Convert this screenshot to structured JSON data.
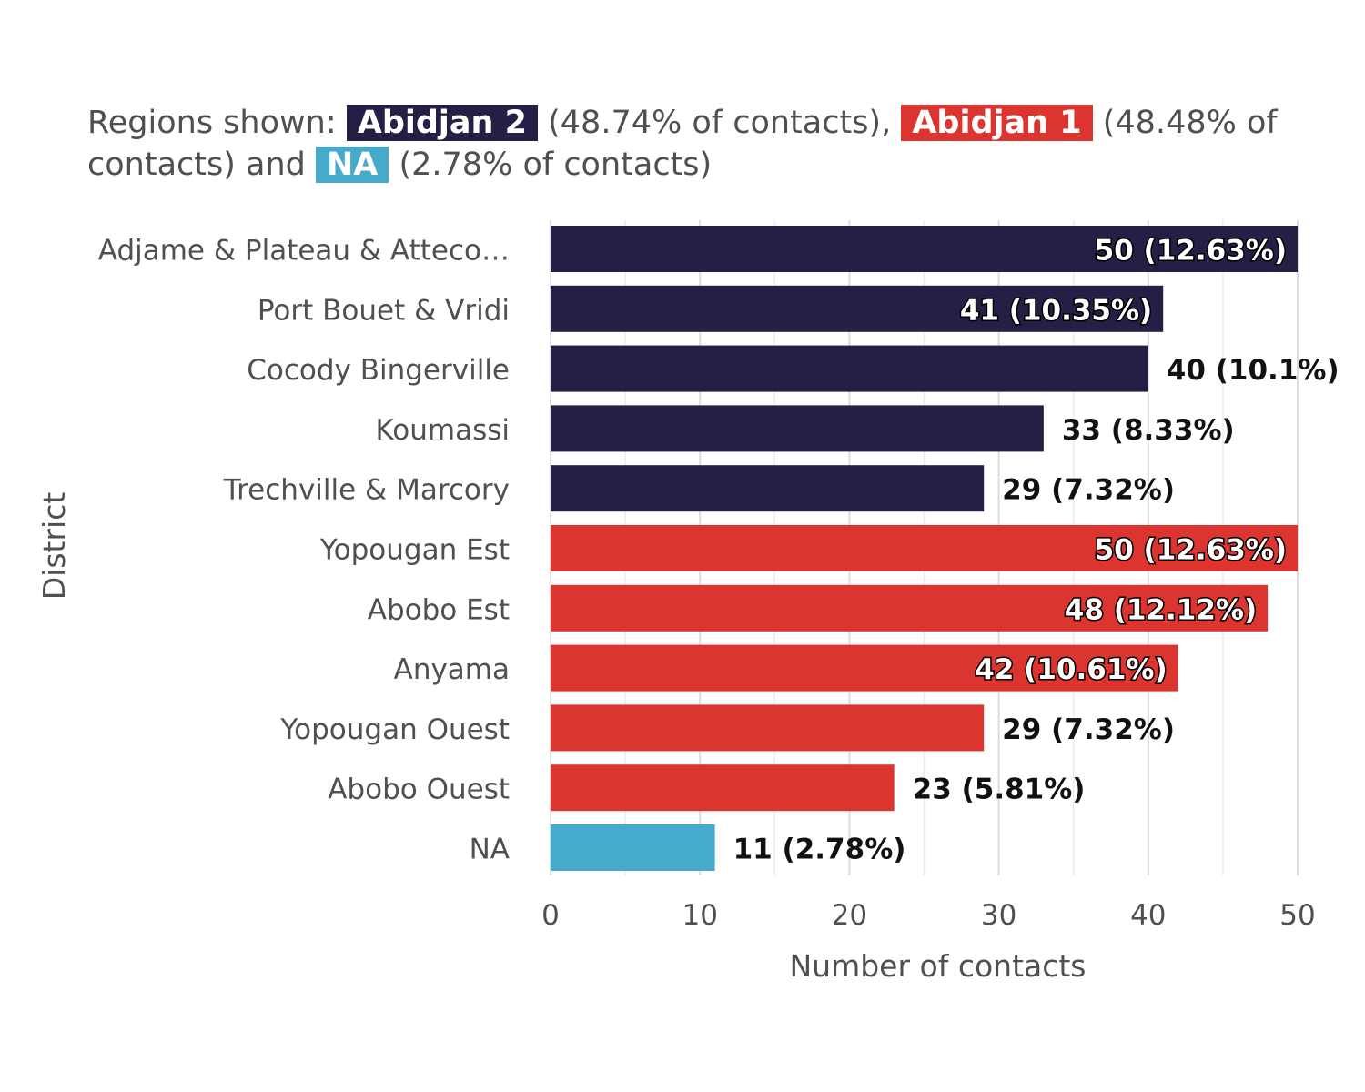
{
  "subtitle": {
    "prefix": "Regions shown:",
    "regions": [
      {
        "name": "Abidjan 2",
        "color": "#271E46",
        "share": "(48.74% of contacts)",
        "sep": ","
      },
      {
        "name": "Abidjan 1",
        "color": "#DC3530",
        "share": "(48.48% of contacts)",
        "sep": " and"
      },
      {
        "name": "NA",
        "color": "#46ABCB",
        "share": "(2.78% of contacts)",
        "sep": ""
      }
    ]
  },
  "chart_data": {
    "type": "bar",
    "orientation": "horizontal",
    "xlabel": "Number of contacts",
    "ylabel": "District",
    "xlim": [
      0,
      50
    ],
    "xticks": [
      0,
      10,
      20,
      30,
      40,
      50
    ],
    "grid": true,
    "categories": [
      "Adjame & Plateau & Atteco…",
      "Port Bouet & Vridi",
      "Cocody Bingerville",
      "Koumassi",
      "Trechville & Marcory",
      "Yopougan Est",
      "Abobo Est",
      "Anyama",
      "Yopougan Ouest",
      "Abobo Ouest",
      "NA"
    ],
    "values": [
      50,
      41,
      40,
      33,
      29,
      50,
      48,
      42,
      29,
      23,
      11
    ],
    "labels": [
      "50 (12.63%)",
      "41 (10.35%)",
      "40 (10.1%)",
      "33 (8.33%)",
      "29 (7.32%)",
      "50 (12.63%)",
      "48 (12.12%)",
      "42 (10.61%)",
      "29 (7.32%)",
      "23 (5.81%)",
      "11 (2.78%)"
    ],
    "regions": [
      "Abidjan 2",
      "Abidjan 2",
      "Abidjan 2",
      "Abidjan 2",
      "Abidjan 2",
      "Abidjan 1",
      "Abidjan 1",
      "Abidjan 1",
      "Abidjan 1",
      "Abidjan 1",
      "NA"
    ],
    "region_colors": {
      "Abidjan 2": "#271E46",
      "Abidjan 1": "#DC3530",
      "NA": "#46ABCB"
    }
  }
}
